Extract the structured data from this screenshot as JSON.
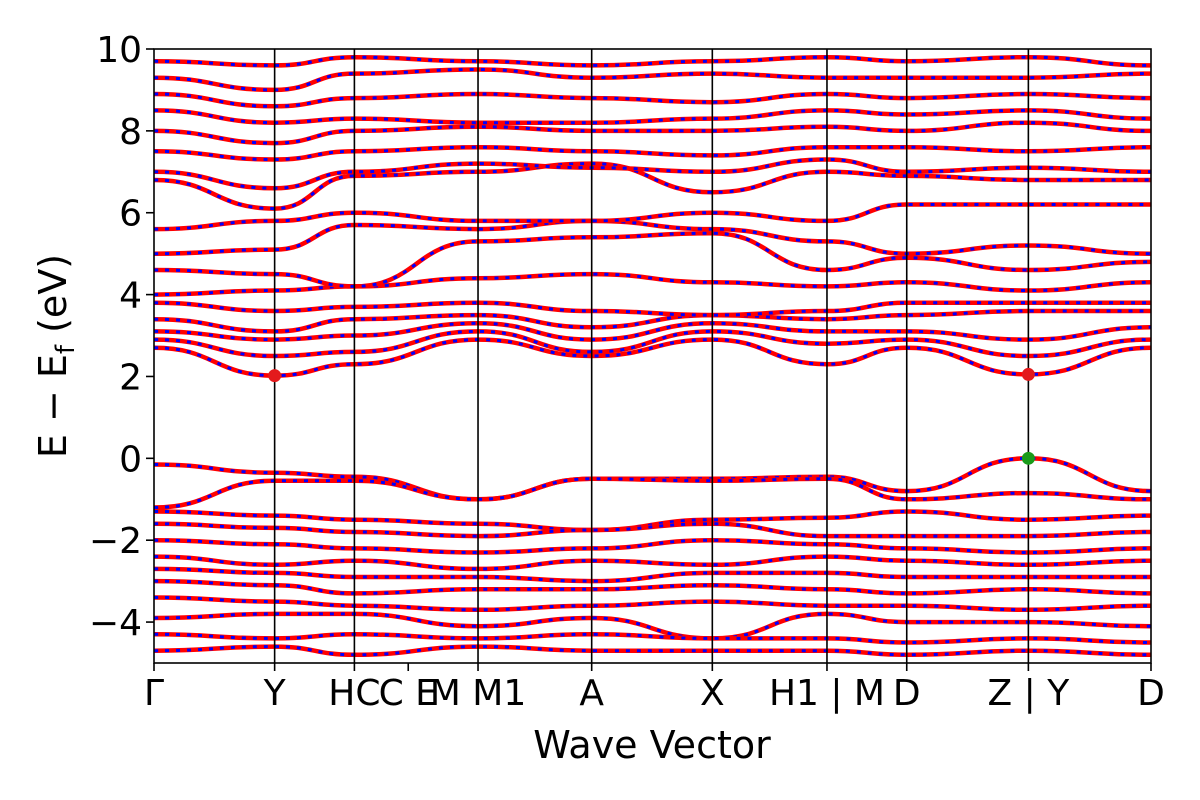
{
  "chart_data": {
    "type": "line",
    "title": "",
    "xlabel": "Wave Vector",
    "ylabel": "E − E_f (eV)",
    "ylabel_main": "E − E",
    "ylabel_sub": "f",
    "ylabel_unit": " (eV)",
    "ylim": [
      -5,
      10
    ],
    "yticks": [
      -4,
      -2,
      0,
      2,
      4,
      6,
      8,
      10
    ],
    "ytick_labels": [
      "−4",
      "−2",
      "0",
      "2",
      "4",
      "6",
      "8",
      "10"
    ],
    "grid": false,
    "legend": "none",
    "xlim": [
      0,
      1
    ],
    "kpoints": [
      {
        "label": "Γ",
        "x": 0.0
      },
      {
        "label": "Y",
        "x": 0.121
      },
      {
        "label": "HC",
        "x": 0.201
      },
      {
        "label": "C E",
        "x": 0.255
      },
      {
        "label": "M M1",
        "x": 0.325
      },
      {
        "label": "A",
        "x": 0.439
      },
      {
        "label": "X",
        "x": 0.56
      },
      {
        "label": "H1 | M",
        "x": 0.675
      },
      {
        "label": "D",
        "x": 0.755
      },
      {
        "label": "Z | Y",
        "x": 0.877
      },
      {
        "label": "D",
        "x": 1.0
      }
    ],
    "vlines": [
      0.121,
      0.201,
      0.325,
      0.439,
      0.56,
      0.675,
      0.755,
      0.877
    ],
    "series_colors": {
      "band": "#ff0000",
      "overlay": "#0000ff"
    },
    "markers": [
      {
        "name": "CBM",
        "x": 0.121,
        "y": 2.02,
        "color": "#e31a1c"
      },
      {
        "name": "CBM",
        "x": 0.877,
        "y": 2.05,
        "color": "#e31a1c"
      },
      {
        "name": "VBM",
        "x": 0.877,
        "y": 0.0,
        "color": "#1a9b1a"
      }
    ],
    "bands": [
      {
        "x": [
          0,
          0.121,
          0.201,
          0.325,
          0.439,
          0.56,
          0.675,
          0.755,
          0.877,
          1.0
        ],
        "y": [
          -0.15,
          -0.35,
          -0.45,
          -1.0,
          -0.5,
          -0.5,
          -0.45,
          -0.8,
          0.0,
          -0.8
        ]
      },
      {
        "x": [
          0,
          0.121,
          0.201,
          0.325,
          0.439,
          0.56,
          0.675,
          0.755,
          0.877,
          1.0
        ],
        "y": [
          -1.2,
          -0.55,
          -0.55,
          -1.0,
          -0.5,
          -0.55,
          -0.5,
          -1.0,
          -0.85,
          -1.0
        ]
      },
      {
        "x": [
          0,
          0.121,
          0.201,
          0.325,
          0.439,
          0.56,
          0.675,
          0.755,
          0.877,
          1.0
        ],
        "y": [
          -1.3,
          -1.4,
          -1.5,
          -1.6,
          -1.75,
          -1.5,
          -1.45,
          -1.3,
          -1.5,
          -1.4
        ]
      },
      {
        "x": [
          0,
          0.121,
          0.201,
          0.325,
          0.439,
          0.56,
          0.675,
          0.755,
          0.877,
          1.0
        ],
        "y": [
          -1.6,
          -1.7,
          -1.8,
          -1.9,
          -1.75,
          -1.6,
          -1.9,
          -1.9,
          -1.9,
          -1.8
        ]
      },
      {
        "x": [
          0,
          0.121,
          0.201,
          0.325,
          0.439,
          0.56,
          0.675,
          0.755,
          0.877,
          1.0
        ],
        "y": [
          -2.0,
          -2.1,
          -2.2,
          -2.3,
          -2.2,
          -2.0,
          -2.1,
          -2.2,
          -2.3,
          -2.2
        ]
      },
      {
        "x": [
          0,
          0.121,
          0.201,
          0.325,
          0.439,
          0.56,
          0.675,
          0.755,
          0.877,
          1.0
        ],
        "y": [
          -2.4,
          -2.6,
          -2.5,
          -2.7,
          -2.5,
          -2.6,
          -2.4,
          -2.5,
          -2.6,
          -2.5
        ]
      },
      {
        "x": [
          0,
          0.121,
          0.201,
          0.325,
          0.439,
          0.56,
          0.675,
          0.755,
          0.877,
          1.0
        ],
        "y": [
          -2.7,
          -2.8,
          -2.9,
          -2.9,
          -3.0,
          -2.8,
          -2.8,
          -2.9,
          -2.9,
          -2.9
        ]
      },
      {
        "x": [
          0,
          0.121,
          0.201,
          0.325,
          0.439,
          0.56,
          0.675,
          0.755,
          0.877,
          1.0
        ],
        "y": [
          -3.0,
          -3.1,
          -3.3,
          -3.2,
          -3.2,
          -3.1,
          -3.2,
          -3.3,
          -3.2,
          -3.3
        ]
      },
      {
        "x": [
          0,
          0.121,
          0.201,
          0.325,
          0.439,
          0.56,
          0.675,
          0.755,
          0.877,
          1.0
        ],
        "y": [
          -3.4,
          -3.5,
          -3.6,
          -3.7,
          -3.6,
          -3.5,
          -3.6,
          -3.6,
          -3.7,
          -3.6
        ]
      },
      {
        "x": [
          0,
          0.121,
          0.201,
          0.325,
          0.439,
          0.56,
          0.675,
          0.755,
          0.877,
          1.0
        ],
        "y": [
          -3.9,
          -3.8,
          -3.8,
          -4.1,
          -3.9,
          -4.4,
          -3.8,
          -4.0,
          -4.0,
          -4.1
        ]
      },
      {
        "x": [
          0,
          0.121,
          0.201,
          0.325,
          0.439,
          0.56,
          0.675,
          0.755,
          0.877,
          1.0
        ],
        "y": [
          -4.3,
          -4.4,
          -4.3,
          -4.4,
          -4.3,
          -4.4,
          -4.4,
          -4.5,
          -4.4,
          -4.5
        ]
      },
      {
        "x": [
          0,
          0.121,
          0.201,
          0.325,
          0.439,
          0.56,
          0.675,
          0.755,
          0.877,
          1.0
        ],
        "y": [
          -4.7,
          -4.6,
          -4.8,
          -4.6,
          -4.7,
          -4.7,
          -4.7,
          -4.8,
          -4.7,
          -4.8
        ]
      },
      {
        "x": [
          0,
          0.121,
          0.201,
          0.325,
          0.439,
          0.56,
          0.675,
          0.755,
          0.877,
          1.0
        ],
        "y": [
          2.7,
          2.02,
          2.3,
          2.9,
          2.5,
          2.9,
          2.3,
          2.7,
          2.05,
          2.7
        ]
      },
      {
        "x": [
          0,
          0.121,
          0.201,
          0.325,
          0.439,
          0.56,
          0.675,
          0.755,
          0.877,
          1.0
        ],
        "y": [
          2.9,
          2.5,
          2.6,
          3.1,
          2.6,
          3.1,
          2.8,
          2.9,
          2.5,
          2.9
        ]
      },
      {
        "x": [
          0,
          0.121,
          0.201,
          0.325,
          0.439,
          0.56,
          0.675,
          0.755,
          0.877,
          1.0
        ],
        "y": [
          3.1,
          2.9,
          3.0,
          3.3,
          2.9,
          3.3,
          3.1,
          3.1,
          2.9,
          3.2
        ]
      },
      {
        "x": [
          0,
          0.121,
          0.201,
          0.325,
          0.439,
          0.56,
          0.675,
          0.755,
          0.877,
          1.0
        ],
        "y": [
          3.4,
          3.1,
          3.4,
          3.5,
          3.2,
          3.5,
          3.4,
          3.5,
          3.6,
          3.6
        ]
      },
      {
        "x": [
          0,
          0.121,
          0.201,
          0.325,
          0.439,
          0.56,
          0.675,
          0.755,
          0.877,
          1.0
        ],
        "y": [
          3.8,
          3.6,
          3.7,
          3.8,
          3.6,
          3.5,
          3.6,
          3.8,
          3.8,
          3.8
        ]
      },
      {
        "x": [
          0,
          0.121,
          0.201,
          0.325,
          0.439,
          0.56,
          0.675,
          0.755,
          0.877,
          1.0
        ],
        "y": [
          4.0,
          4.1,
          4.2,
          4.4,
          4.5,
          4.3,
          4.2,
          4.3,
          4.1,
          4.3
        ]
      },
      {
        "x": [
          0,
          0.121,
          0.201,
          0.325,
          0.439,
          0.56,
          0.675,
          0.755,
          0.877,
          1.0
        ],
        "y": [
          4.6,
          4.5,
          4.2,
          5.3,
          5.4,
          5.5,
          4.6,
          4.9,
          4.6,
          4.8
        ]
      },
      {
        "x": [
          0,
          0.121,
          0.201,
          0.325,
          0.439,
          0.56,
          0.675,
          0.755,
          0.877,
          1.0
        ],
        "y": [
          5.0,
          5.1,
          5.7,
          5.6,
          5.8,
          5.6,
          5.3,
          5.0,
          5.2,
          5.0
        ]
      },
      {
        "x": [
          0,
          0.121,
          0.201,
          0.325,
          0.439,
          0.56,
          0.675,
          0.755,
          0.877,
          1.0
        ],
        "y": [
          5.6,
          5.8,
          6.0,
          5.8,
          5.8,
          6.0,
          5.8,
          6.2,
          6.2,
          6.2
        ]
      },
      {
        "x": [
          0,
          0.121,
          0.201,
          0.325,
          0.439,
          0.56,
          0.675,
          0.755,
          0.877,
          1.0
        ],
        "y": [
          6.8,
          6.1,
          6.9,
          7.0,
          7.2,
          6.5,
          7.0,
          6.9,
          6.8,
          6.8
        ]
      },
      {
        "x": [
          0,
          0.121,
          0.201,
          0.325,
          0.439,
          0.56,
          0.675,
          0.755,
          0.877,
          1.0
        ],
        "y": [
          7.0,
          6.6,
          7.0,
          7.2,
          7.1,
          7.0,
          7.3,
          7.0,
          7.1,
          7.0
        ]
      },
      {
        "x": [
          0,
          0.121,
          0.201,
          0.325,
          0.439,
          0.56,
          0.675,
          0.755,
          0.877,
          1.0
        ],
        "y": [
          7.5,
          7.3,
          7.5,
          7.6,
          7.5,
          7.4,
          7.6,
          7.6,
          7.5,
          7.6
        ]
      },
      {
        "x": [
          0,
          0.121,
          0.201,
          0.325,
          0.439,
          0.56,
          0.675,
          0.755,
          0.877,
          1.0
        ],
        "y": [
          8.0,
          7.7,
          8.0,
          8.1,
          8.0,
          8.0,
          8.1,
          8.0,
          8.2,
          8.0
        ]
      },
      {
        "x": [
          0,
          0.121,
          0.201,
          0.325,
          0.439,
          0.56,
          0.675,
          0.755,
          0.877,
          1.0
        ],
        "y": [
          8.5,
          8.2,
          8.3,
          8.2,
          8.2,
          8.3,
          8.5,
          8.4,
          8.5,
          8.3
        ]
      },
      {
        "x": [
          0,
          0.121,
          0.201,
          0.325,
          0.439,
          0.56,
          0.675,
          0.755,
          0.877,
          1.0
        ],
        "y": [
          8.9,
          8.6,
          8.8,
          8.9,
          8.8,
          8.7,
          8.9,
          8.8,
          8.9,
          8.8
        ]
      },
      {
        "x": [
          0,
          0.121,
          0.201,
          0.325,
          0.439,
          0.56,
          0.675,
          0.755,
          0.877,
          1.0
        ],
        "y": [
          9.3,
          9.0,
          9.4,
          9.5,
          9.3,
          9.4,
          9.3,
          9.3,
          9.3,
          9.4
        ]
      },
      {
        "x": [
          0,
          0.121,
          0.201,
          0.325,
          0.439,
          0.56,
          0.675,
          0.755,
          0.877,
          1.0
        ],
        "y": [
          9.7,
          9.6,
          9.8,
          9.7,
          9.6,
          9.7,
          9.8,
          9.7,
          9.8,
          9.6
        ]
      }
    ]
  }
}
